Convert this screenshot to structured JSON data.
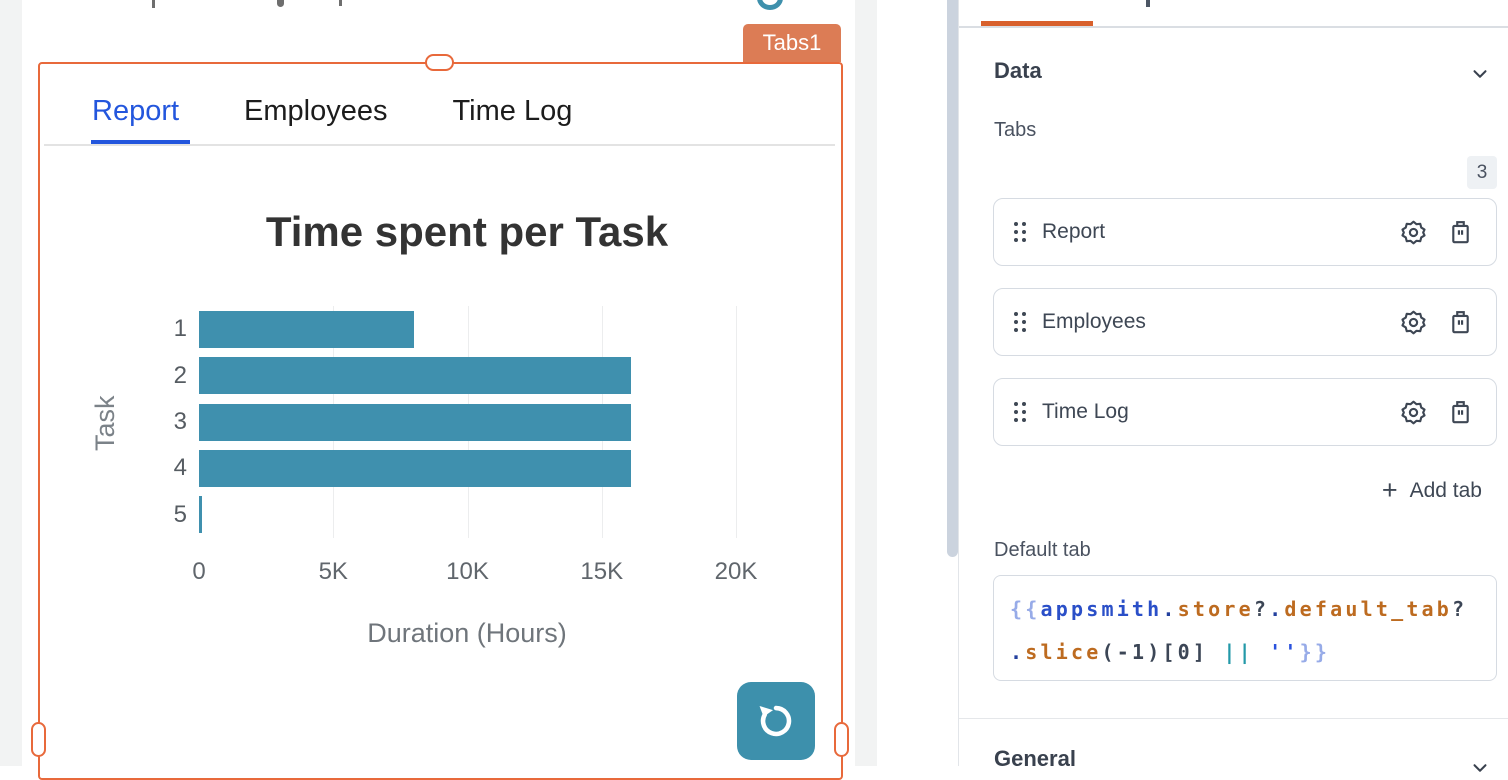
{
  "canvas": {
    "widget_badge": "Tabs1",
    "tabs": [
      {
        "label": "Report",
        "active": true
      },
      {
        "label": "Employees",
        "active": false
      },
      {
        "label": "Time Log",
        "active": false
      }
    ]
  },
  "chart_data": {
    "type": "bar",
    "orientation": "horizontal",
    "title": "Time spent per Task",
    "xlabel": "Duration (Hours)",
    "ylabel": "Task",
    "categories": [
      "1",
      "2",
      "3",
      "4",
      "5"
    ],
    "values": [
      8000,
      16100,
      16100,
      16100,
      50
    ],
    "x_ticks": [
      {
        "label": "0",
        "value": 0
      },
      {
        "label": "5K",
        "value": 5000
      },
      {
        "label": "10K",
        "value": 10000
      },
      {
        "label": "15K",
        "value": 15000
      },
      {
        "label": "20K",
        "value": 20000
      }
    ],
    "xlim": [
      0,
      23000
    ],
    "grid": "vertical",
    "legend": "none",
    "bar_color": "#3F90AE"
  },
  "property_pane": {
    "sections": {
      "data": "Data",
      "general": "General"
    },
    "tabs_field_label": "Tabs",
    "tabs_count": "3",
    "tab_items": [
      {
        "label": "Report"
      },
      {
        "label": "Employees"
      },
      {
        "label": "Time Log"
      }
    ],
    "add_tab_label": "Add tab",
    "default_tab_label": "Default tab",
    "default_tab_code": "{{appsmith.store?.default_tab?.slice(-1)[0] || ''}}",
    "code_lines": [
      [
        {
          "t": "{{",
          "c": "brace"
        },
        {
          "t": "appsmith",
          "c": "obj"
        },
        {
          "t": ".",
          "c": "dot"
        },
        {
          "t": "store",
          "c": "prop"
        },
        {
          "t": "?",
          "c": "plain"
        },
        {
          "t": ".",
          "c": "dot"
        },
        {
          "t": "default_tab",
          "c": "prop"
        },
        {
          "t": "?",
          "c": "plain"
        }
      ],
      [
        {
          "t": ".",
          "c": "dot"
        },
        {
          "t": "slice",
          "c": "prop"
        },
        {
          "t": "(-1)[0]",
          "c": "plain"
        },
        {
          "t": " ",
          "c": "plain"
        },
        {
          "t": "||",
          "c": "op"
        },
        {
          "t": " ",
          "c": "plain"
        },
        {
          "t": "''",
          "c": "str"
        },
        {
          "t": "}}",
          "c": "brace"
        }
      ]
    ]
  },
  "colors": {
    "selection_orange": "#E8693B",
    "badge_orange": "#DC7C55",
    "pane_tab_orange": "#D8602C",
    "active_tab_blue": "#2356DD",
    "teal": "#3D90AC",
    "bar_teal": "#3F90AE"
  }
}
